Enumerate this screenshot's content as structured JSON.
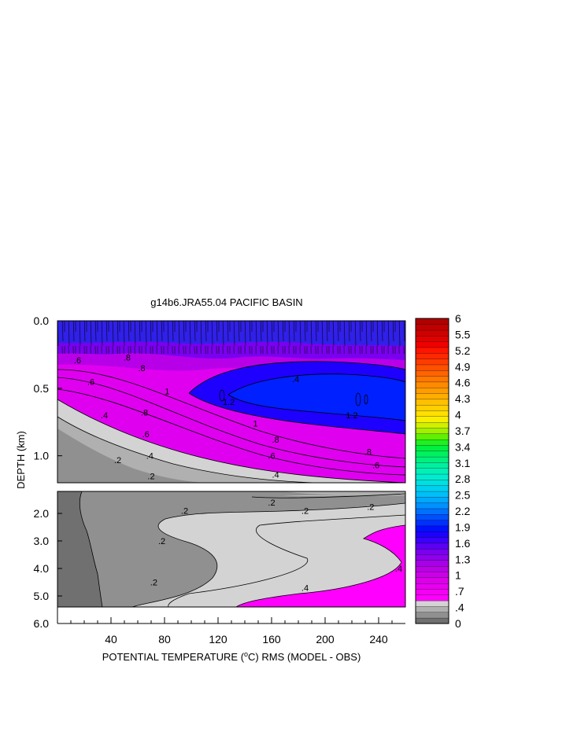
{
  "chart_data": {
    "type": "heatmap",
    "title": "g14b6.JRA55.04 PACIFIC BASIN",
    "xlabel": "POTENTIAL TEMPERATURE (",
    "xlabel_unit": "o",
    "xlabel_rest": "C) RMS (MODEL - OBS)",
    "ylabel": "DEPTH (km)",
    "xlim": [
      0,
      260
    ],
    "x_ticks": [
      40,
      80,
      120,
      160,
      200,
      240
    ],
    "x_tick_labels": [
      "40",
      "80",
      "120",
      "160",
      "200",
      "240"
    ],
    "upper_panel": {
      "ylim": [
        0.0,
        1.2
      ],
      "y_ticks": [
        0.0,
        0.5,
        1.0
      ],
      "y_tick_labels": [
        "0.0",
        "0.5",
        "1.0"
      ]
    },
    "lower_panel": {
      "ylim": [
        1.2,
        6.0
      ],
      "y_ticks": [
        2.0,
        3.0,
        4.0,
        5.0,
        6.0
      ],
      "y_tick_labels": [
        "2.0",
        "3.0",
        "4.0",
        "5.0",
        "6.0"
      ]
    },
    "colorbar": {
      "labels": [
        "6",
        "5.5",
        "5.2",
        "4.9",
        "4.6",
        "4.3",
        "4",
        "3.7",
        "3.4",
        "3.1",
        "2.8",
        "2.5",
        "2.2",
        "1.9",
        "1.6",
        "1.3",
        "1",
        ".7",
        ".4",
        "0"
      ],
      "colors": [
        "#707070",
        "#909090",
        "#b0b0b0",
        "#d3d3d3",
        "#ff00ff",
        "#f500f5",
        "#e800f0",
        "#dc00ea",
        "#cc00e8",
        "#bb00e6",
        "#a800e8",
        "#9000ec",
        "#7a00f0",
        "#5a00f5",
        "#3a00fa",
        "#1e00ff",
        "#0010ff",
        "#0030ff",
        "#0050ff",
        "#0070ff",
        "#0090ff",
        "#00a8ff",
        "#00bff8",
        "#00d0f0",
        "#00e0e0",
        "#00ecd0",
        "#00f0b8",
        "#00f0a0",
        "#00f080",
        "#00f060",
        "#00f040",
        "#20f020",
        "#60f000",
        "#a0f000",
        "#d0f000",
        "#f8f000",
        "#ffe000",
        "#ffd000",
        "#ffc000",
        "#ffae00",
        "#ff9c00",
        "#ff8a00",
        "#ff7800",
        "#ff6400",
        "#ff5000",
        "#ff3c00",
        "#ff2800",
        "#ff1400",
        "#f00000",
        "#e00000",
        "#d00000",
        "#c00000",
        "#b00000"
      ]
    },
    "contour_labels": [
      {
        "text": ".6",
        "x": 15,
        "y": 0.29
      },
      {
        "text": ".8",
        "x": 52,
        "y": 0.27
      },
      {
        "text": ".8",
        "x": 63,
        "y": 0.35
      },
      {
        "text": "1",
        "x": 82,
        "y": 0.52
      },
      {
        "text": ".6",
        "x": 25,
        "y": 0.45
      },
      {
        "text": ".4",
        "x": 35,
        "y": 0.7
      },
      {
        "text": ".8",
        "x": 65,
        "y": 0.68
      },
      {
        "text": ".6",
        "x": 66,
        "y": 0.84
      },
      {
        "text": ".4",
        "x": 69,
        "y": 1.0
      },
      {
        "text": ".2",
        "x": 45,
        "y": 1.03
      },
      {
        "text": ".2",
        "x": 70,
        "y": 1.15
      },
      {
        "text": "1.2",
        "x": 128,
        "y": 0.6
      },
      {
        "text": "1",
        "x": 148,
        "y": 0.76
      },
      {
        "text": ".8",
        "x": 163,
        "y": 0.88
      },
      {
        "text": ".6",
        "x": 160,
        "y": 1.0
      },
      {
        "text": ".4",
        "x": 163,
        "y": 1.14
      },
      {
        "text": "1.2",
        "x": 220,
        "y": 0.7
      },
      {
        "text": ".8",
        "x": 232,
        "y": 0.97
      },
      {
        "text": ".6",
        "x": 238,
        "y": 1.07
      },
      {
        "text": ".4",
        "x": 178,
        "y": 0.43
      },
      {
        "text": ".2",
        "x": 95,
        "y": 1.9
      },
      {
        "text": ".2",
        "x": 160,
        "y": 1.6
      },
      {
        "text": ".2",
        "x": 185,
        "y": 1.9
      },
      {
        "text": ".2",
        "x": 234,
        "y": 1.75
      },
      {
        "text": ".2",
        "x": 78,
        "y": 3.0
      },
      {
        "text": ".2",
        "x": 72,
        "y": 4.5
      },
      {
        "text": ".4",
        "x": 185,
        "y": 4.7
      },
      {
        "text": ".4",
        "x": 255,
        "y": 4.0
      }
    ]
  }
}
